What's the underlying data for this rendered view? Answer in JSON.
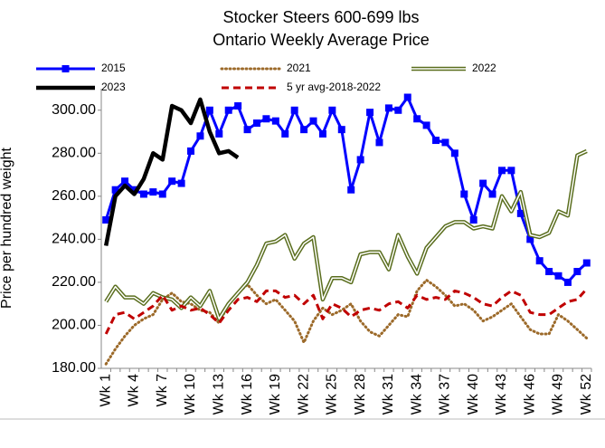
{
  "chart_data": {
    "type": "line",
    "title": "Stocker Steers 600-699 lbs",
    "subtitle": "Ontario Weekly Average Price",
    "y_label": "Price per hundred weight",
    "categories": [
      "Wk 1",
      null,
      null,
      "Wk 4",
      null,
      null,
      "Wk 7",
      null,
      null,
      "Wk 10",
      null,
      null,
      "Wk 13",
      null,
      null,
      "Wk 16",
      null,
      null,
      "Wk 19",
      null,
      null,
      "Wk 22",
      null,
      null,
      "Wk 25",
      null,
      null,
      "Wk 28",
      null,
      null,
      "Wk 31",
      null,
      null,
      "Wk 34",
      null,
      null,
      "Wk 37",
      null,
      null,
      "Wk 40",
      null,
      null,
      "Wk 43",
      null,
      null,
      "Wk 46",
      null,
      null,
      "Wk 49",
      null,
      null,
      "Wk 52"
    ],
    "series": [
      {
        "name": "2015",
        "color": "#0000ff",
        "style": "solid",
        "marker": "square",
        "values": [
          249,
          263,
          267,
          263,
          261,
          262,
          261,
          267,
          266,
          281,
          288,
          300,
          289,
          300,
          302,
          291,
          294,
          296,
          295,
          289,
          300,
          291,
          295,
          289,
          300,
          291,
          263,
          277,
          299,
          285,
          301,
          300,
          306,
          296,
          293,
          286,
          285,
          280,
          261,
          249,
          266,
          261,
          272,
          272,
          252,
          240,
          230,
          225,
          223,
          220,
          225,
          229
        ]
      },
      {
        "name": "2021",
        "color": "#9c6a2a",
        "style": "dotted",
        "values": [
          182,
          189,
          195,
          200,
          203,
          205,
          212,
          215,
          211,
          210,
          207,
          206,
          201,
          210,
          215,
          219,
          214,
          210,
          212,
          207,
          202,
          192,
          202,
          208,
          205,
          207,
          210,
          202,
          197,
          195,
          200,
          205,
          204,
          216,
          221,
          218,
          214,
          209,
          210,
          207,
          202,
          204,
          207,
          210,
          204,
          198,
          196,
          196,
          205,
          202,
          198,
          194
        ]
      },
      {
        "name": "2022",
        "color": "#5a6e1e",
        "style": "double",
        "values": [
          211,
          218,
          213,
          213,
          210,
          215,
          213,
          212,
          208,
          213,
          209,
          216,
          203,
          210,
          215,
          220,
          228,
          238,
          239,
          242,
          231,
          238,
          241,
          212,
          222,
          222,
          220,
          233,
          234,
          234,
          226,
          242,
          232,
          224,
          236,
          241,
          246,
          248,
          248,
          245,
          246,
          245,
          260,
          253,
          262,
          242,
          241,
          243,
          253,
          251,
          279,
          281
        ]
      },
      {
        "name": "2023",
        "color": "#000000",
        "style": "bold",
        "values": [
          237,
          260,
          265,
          261,
          268,
          280,
          277,
          302,
          300,
          294,
          305,
          290,
          280,
          281,
          278,
          null,
          null,
          null,
          null,
          null,
          null,
          null,
          null,
          null,
          null,
          null,
          null,
          null,
          null,
          null,
          null,
          null,
          null,
          null,
          null,
          null,
          null,
          null,
          null,
          null,
          null,
          null,
          null,
          null,
          null,
          null,
          null,
          null,
          null,
          null,
          null,
          null
        ]
      },
      {
        "name": "5 yr avg-2018-2022",
        "color": "#c00000",
        "style": "dashed",
        "values": [
          196,
          205,
          206,
          203,
          206,
          209,
          214,
          207,
          209,
          207,
          208,
          205,
          201,
          207,
          212,
          213,
          211,
          216,
          216,
          213,
          214,
          210,
          214,
          203,
          210,
          208,
          204,
          207,
          208,
          207,
          210,
          211,
          208,
          214,
          212,
          213,
          212,
          216,
          215,
          213,
          210,
          209,
          213,
          216,
          214,
          206,
          205,
          205,
          208,
          211,
          212,
          217
        ]
      }
    ],
    "ylim": [
      180,
      310
    ],
    "yticks": [
      {
        "value": 180,
        "label": "180.00"
      },
      {
        "value": 200,
        "label": "200.00"
      },
      {
        "value": 220,
        "label": "220.00"
      },
      {
        "value": 240,
        "label": "240.00"
      },
      {
        "value": 260,
        "label": "260.00"
      },
      {
        "value": 280,
        "label": "280.00"
      },
      {
        "value": 300,
        "label": "300.00"
      }
    ],
    "grid": false
  }
}
